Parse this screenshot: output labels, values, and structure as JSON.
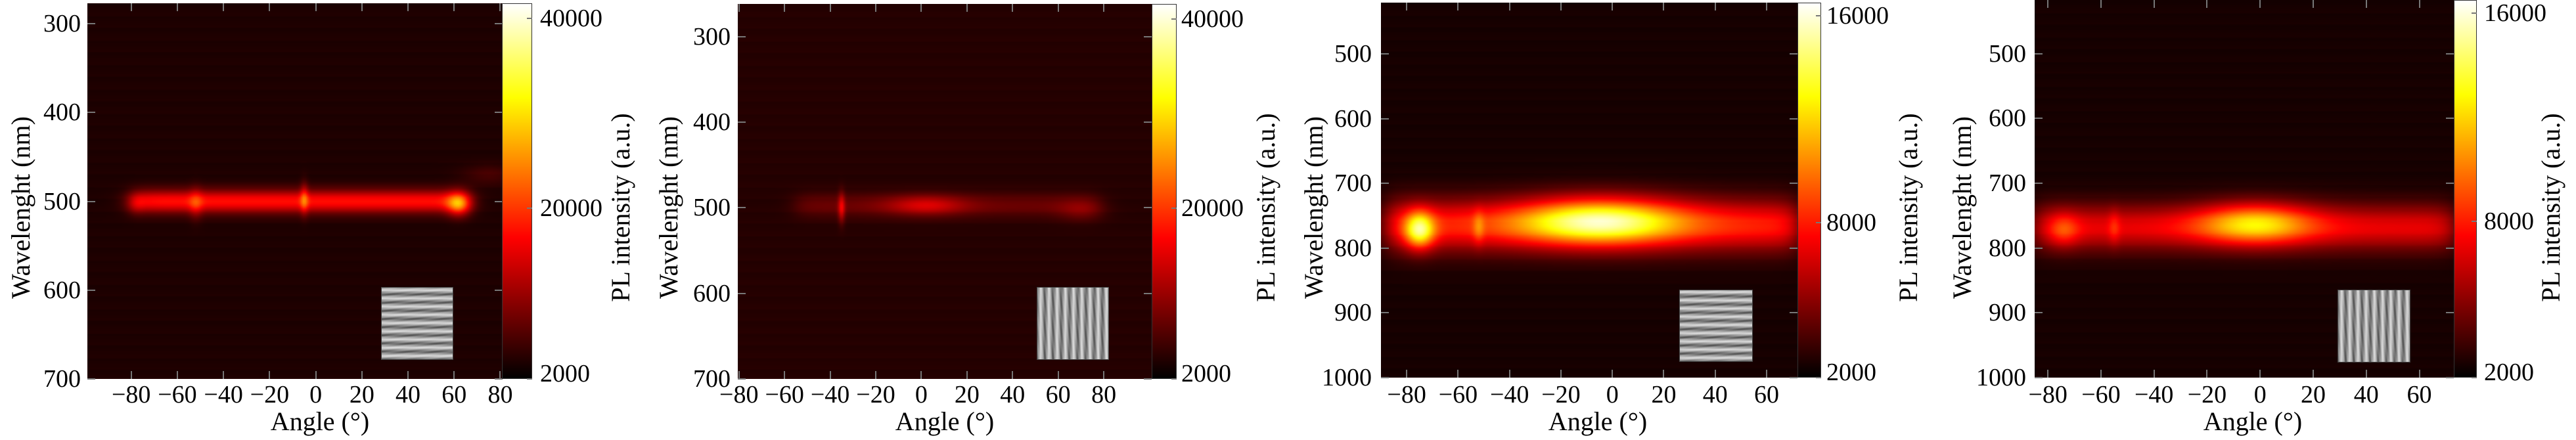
{
  "chart_data": [
    {
      "type": "heatmap",
      "title": "",
      "xlabel": "Angle (°)",
      "ylabel": "Wavelenght (nm)",
      "colorbar_label": "PL intensity (a.u.)",
      "colormap": "hot",
      "xlim": [
        -99,
        81
      ],
      "ylim": [
        277,
        700
      ],
      "xticks": [
        {
          "value": -80,
          "label": "−80"
        },
        {
          "value": -60,
          "label": "−60"
        },
        {
          "value": -40,
          "label": "−40"
        },
        {
          "value": -20,
          "label": "−20"
        },
        {
          "value": 0,
          "label": "0"
        },
        {
          "value": 20,
          "label": "20"
        },
        {
          "value": 40,
          "label": "40"
        },
        {
          "value": 60,
          "label": "60"
        },
        {
          "value": 80,
          "label": "80"
        }
      ],
      "yticks": [
        {
          "value": 300,
          "label": "300"
        },
        {
          "value": 400,
          "label": "400"
        },
        {
          "value": 500,
          "label": "500"
        },
        {
          "value": 600,
          "label": "600"
        },
        {
          "value": 700,
          "label": "700"
        }
      ],
      "clim": [
        2000,
        41600
      ],
      "cbar_ticks": [
        {
          "value": 40000,
          "label": "40000"
        },
        {
          "value": 20000,
          "label": "20000"
        },
        {
          "value": 2000,
          "label": "2000"
        }
      ],
      "background_intensity": 3500,
      "features": [
        {
          "kind": "band",
          "angle_range": [
            -80,
            66
          ],
          "wavelength": 500,
          "width_nm": 9,
          "intensity": 14000
        },
        {
          "kind": "spot",
          "angle": 62,
          "wavelength": 503,
          "width_deg": 3.5,
          "width_nm": 9,
          "intensity": 14000
        },
        {
          "kind": "spot",
          "angle": -5,
          "wavelength": 497,
          "width_deg": 1.2,
          "width_nm": 12,
          "intensity": 8000
        },
        {
          "kind": "spot",
          "angle": -52,
          "wavelength": 503,
          "width_deg": 2,
          "width_nm": 12,
          "intensity": 5000
        },
        {
          "kind": "spot",
          "angle": -78,
          "wavelength": 503,
          "width_deg": 2.5,
          "width_nm": 8,
          "intensity": 3000
        },
        {
          "kind": "spot",
          "angle": 75,
          "wavelength": 470,
          "width_deg": 8,
          "width_nm": 8,
          "intensity": 2500
        }
      ],
      "inset_grating": "horizontal"
    },
    {
      "type": "heatmap",
      "title": "",
      "xlabel": "Angle (°)",
      "ylabel": "Wavelenght (nm)",
      "colorbar_label": "PL intensity (a.u.)",
      "colormap": "hot",
      "xlim": [
        -80.5,
        101
      ],
      "ylim": [
        262,
        700
      ],
      "xticks": [
        {
          "value": -80,
          "label": "−80"
        },
        {
          "value": -60,
          "label": "−60"
        },
        {
          "value": -40,
          "label": "−40"
        },
        {
          "value": -20,
          "label": "−20"
        },
        {
          "value": 0,
          "label": "0"
        },
        {
          "value": 20,
          "label": "20"
        },
        {
          "value": 40,
          "label": "40"
        },
        {
          "value": 60,
          "label": "60"
        },
        {
          "value": 80,
          "label": "80"
        }
      ],
      "yticks": [
        {
          "value": 300,
          "label": "300"
        },
        {
          "value": 400,
          "label": "400"
        },
        {
          "value": 500,
          "label": "500"
        },
        {
          "value": 600,
          "label": "600"
        },
        {
          "value": 700,
          "label": "700"
        }
      ],
      "clim": [
        2000,
        41600
      ],
      "cbar_ticks": [
        {
          "value": 40000,
          "label": "40000"
        },
        {
          "value": 20000,
          "label": "20000"
        },
        {
          "value": 2000,
          "label": "2000"
        }
      ],
      "background_intensity": 3900,
      "features": [
        {
          "kind": "band",
          "angle_range": [
            -55,
            78
          ],
          "wavelength": 497,
          "width_nm": 10,
          "intensity": 4000
        },
        {
          "kind": "spot",
          "angle": 2,
          "wavelength": 497,
          "width_deg": 12,
          "width_nm": 8,
          "intensity": 7000
        },
        {
          "kind": "spot",
          "angle": 70,
          "wavelength": 503,
          "width_deg": 7,
          "width_nm": 9,
          "intensity": 3000
        },
        {
          "kind": "spot",
          "angle": -35,
          "wavelength": 500,
          "width_deg": 1,
          "width_nm": 12,
          "intensity": 9000
        }
      ],
      "inset_grating": "vertical"
    },
    {
      "type": "heatmap",
      "title": "",
      "xlabel": "Angle (°)",
      "ylabel": "Wavelenght (nm)",
      "colorbar_label": "PL intensity (a.u.)",
      "colormap": "hot",
      "xlim": [
        -90,
        72
      ],
      "ylim": [
        421,
        1000
      ],
      "xticks": [
        {
          "value": -80,
          "label": "−80"
        },
        {
          "value": -60,
          "label": "−60"
        },
        {
          "value": -40,
          "label": "−40"
        },
        {
          "value": -20,
          "label": "−20"
        },
        {
          "value": 0,
          "label": "0"
        },
        {
          "value": 20,
          "label": "20"
        },
        {
          "value": 40,
          "label": "40"
        },
        {
          "value": 60,
          "label": "60"
        }
      ],
      "yticks": [
        {
          "value": 500,
          "label": "500"
        },
        {
          "value": 600,
          "label": "600"
        },
        {
          "value": 700,
          "label": "700"
        },
        {
          "value": 800,
          "label": "800"
        },
        {
          "value": 900,
          "label": "900"
        },
        {
          "value": 1000,
          "label": "1000"
        }
      ],
      "clim": [
        2000,
        16500
      ],
      "cbar_ticks": [
        {
          "value": 16000,
          "label": "16000"
        },
        {
          "value": 8000,
          "label": "8000"
        },
        {
          "value": 2000,
          "label": "2000"
        }
      ],
      "background_intensity": 2400,
      "features": [
        {
          "kind": "band",
          "angle_range": [
            -88,
            72
          ],
          "wavelength": 765,
          "width_nm": 28,
          "intensity": 5500
        },
        {
          "kind": "spot",
          "angle": -5,
          "wavelength": 758,
          "width_deg": 22,
          "width_nm": 25,
          "intensity": 8000
        },
        {
          "kind": "spot",
          "angle": -75,
          "wavelength": 772,
          "width_deg": 4,
          "width_nm": 20,
          "intensity": 7500
        },
        {
          "kind": "spot",
          "angle": -52,
          "wavelength": 768,
          "width_deg": 1.5,
          "width_nm": 18,
          "intensity": 2000
        }
      ],
      "inset_grating": "horizontal"
    },
    {
      "type": "heatmap",
      "title": "",
      "xlabel": "Angle (°)",
      "ylabel": "Wavelenght (nm)",
      "colorbar_label": "PL intensity (a.u.)",
      "colormap": "hot",
      "xlim": [
        -85,
        73
      ],
      "ylim": [
        417,
        1000
      ],
      "xticks": [
        {
          "value": -80,
          "label": "−80"
        },
        {
          "value": -60,
          "label": "−60"
        },
        {
          "value": -40,
          "label": "−40"
        },
        {
          "value": -20,
          "label": "−20"
        },
        {
          "value": 0,
          "label": "0"
        },
        {
          "value": 20,
          "label": "20"
        },
        {
          "value": 40,
          "label": "40"
        },
        {
          "value": 60,
          "label": "60"
        }
      ],
      "yticks": [
        {
          "value": 500,
          "label": "500"
        },
        {
          "value": 600,
          "label": "600"
        },
        {
          "value": 700,
          "label": "700"
        },
        {
          "value": 800,
          "label": "800"
        },
        {
          "value": 900,
          "label": "900"
        },
        {
          "value": 1000,
          "label": "1000"
        }
      ],
      "clim": [
        2000,
        16500
      ],
      "cbar_ticks": [
        {
          "value": 16000,
          "label": "16000"
        },
        {
          "value": 8000,
          "label": "8000"
        },
        {
          "value": 2000,
          "label": "2000"
        }
      ],
      "background_intensity": 2400,
      "features": [
        {
          "kind": "band",
          "angle_range": [
            -85,
            73
          ],
          "wavelength": 768,
          "width_nm": 25,
          "intensity": 4500
        },
        {
          "kind": "spot",
          "angle": -2,
          "wavelength": 762,
          "width_deg": 15,
          "width_nm": 22,
          "intensity": 6000
        },
        {
          "kind": "spot",
          "angle": -74,
          "wavelength": 772,
          "width_deg": 4,
          "width_nm": 18,
          "intensity": 2500
        },
        {
          "kind": "spot",
          "angle": -55,
          "wavelength": 768,
          "width_deg": 1.5,
          "width_nm": 18,
          "intensity": 1500
        }
      ],
      "inset_grating": "vertical"
    }
  ]
}
